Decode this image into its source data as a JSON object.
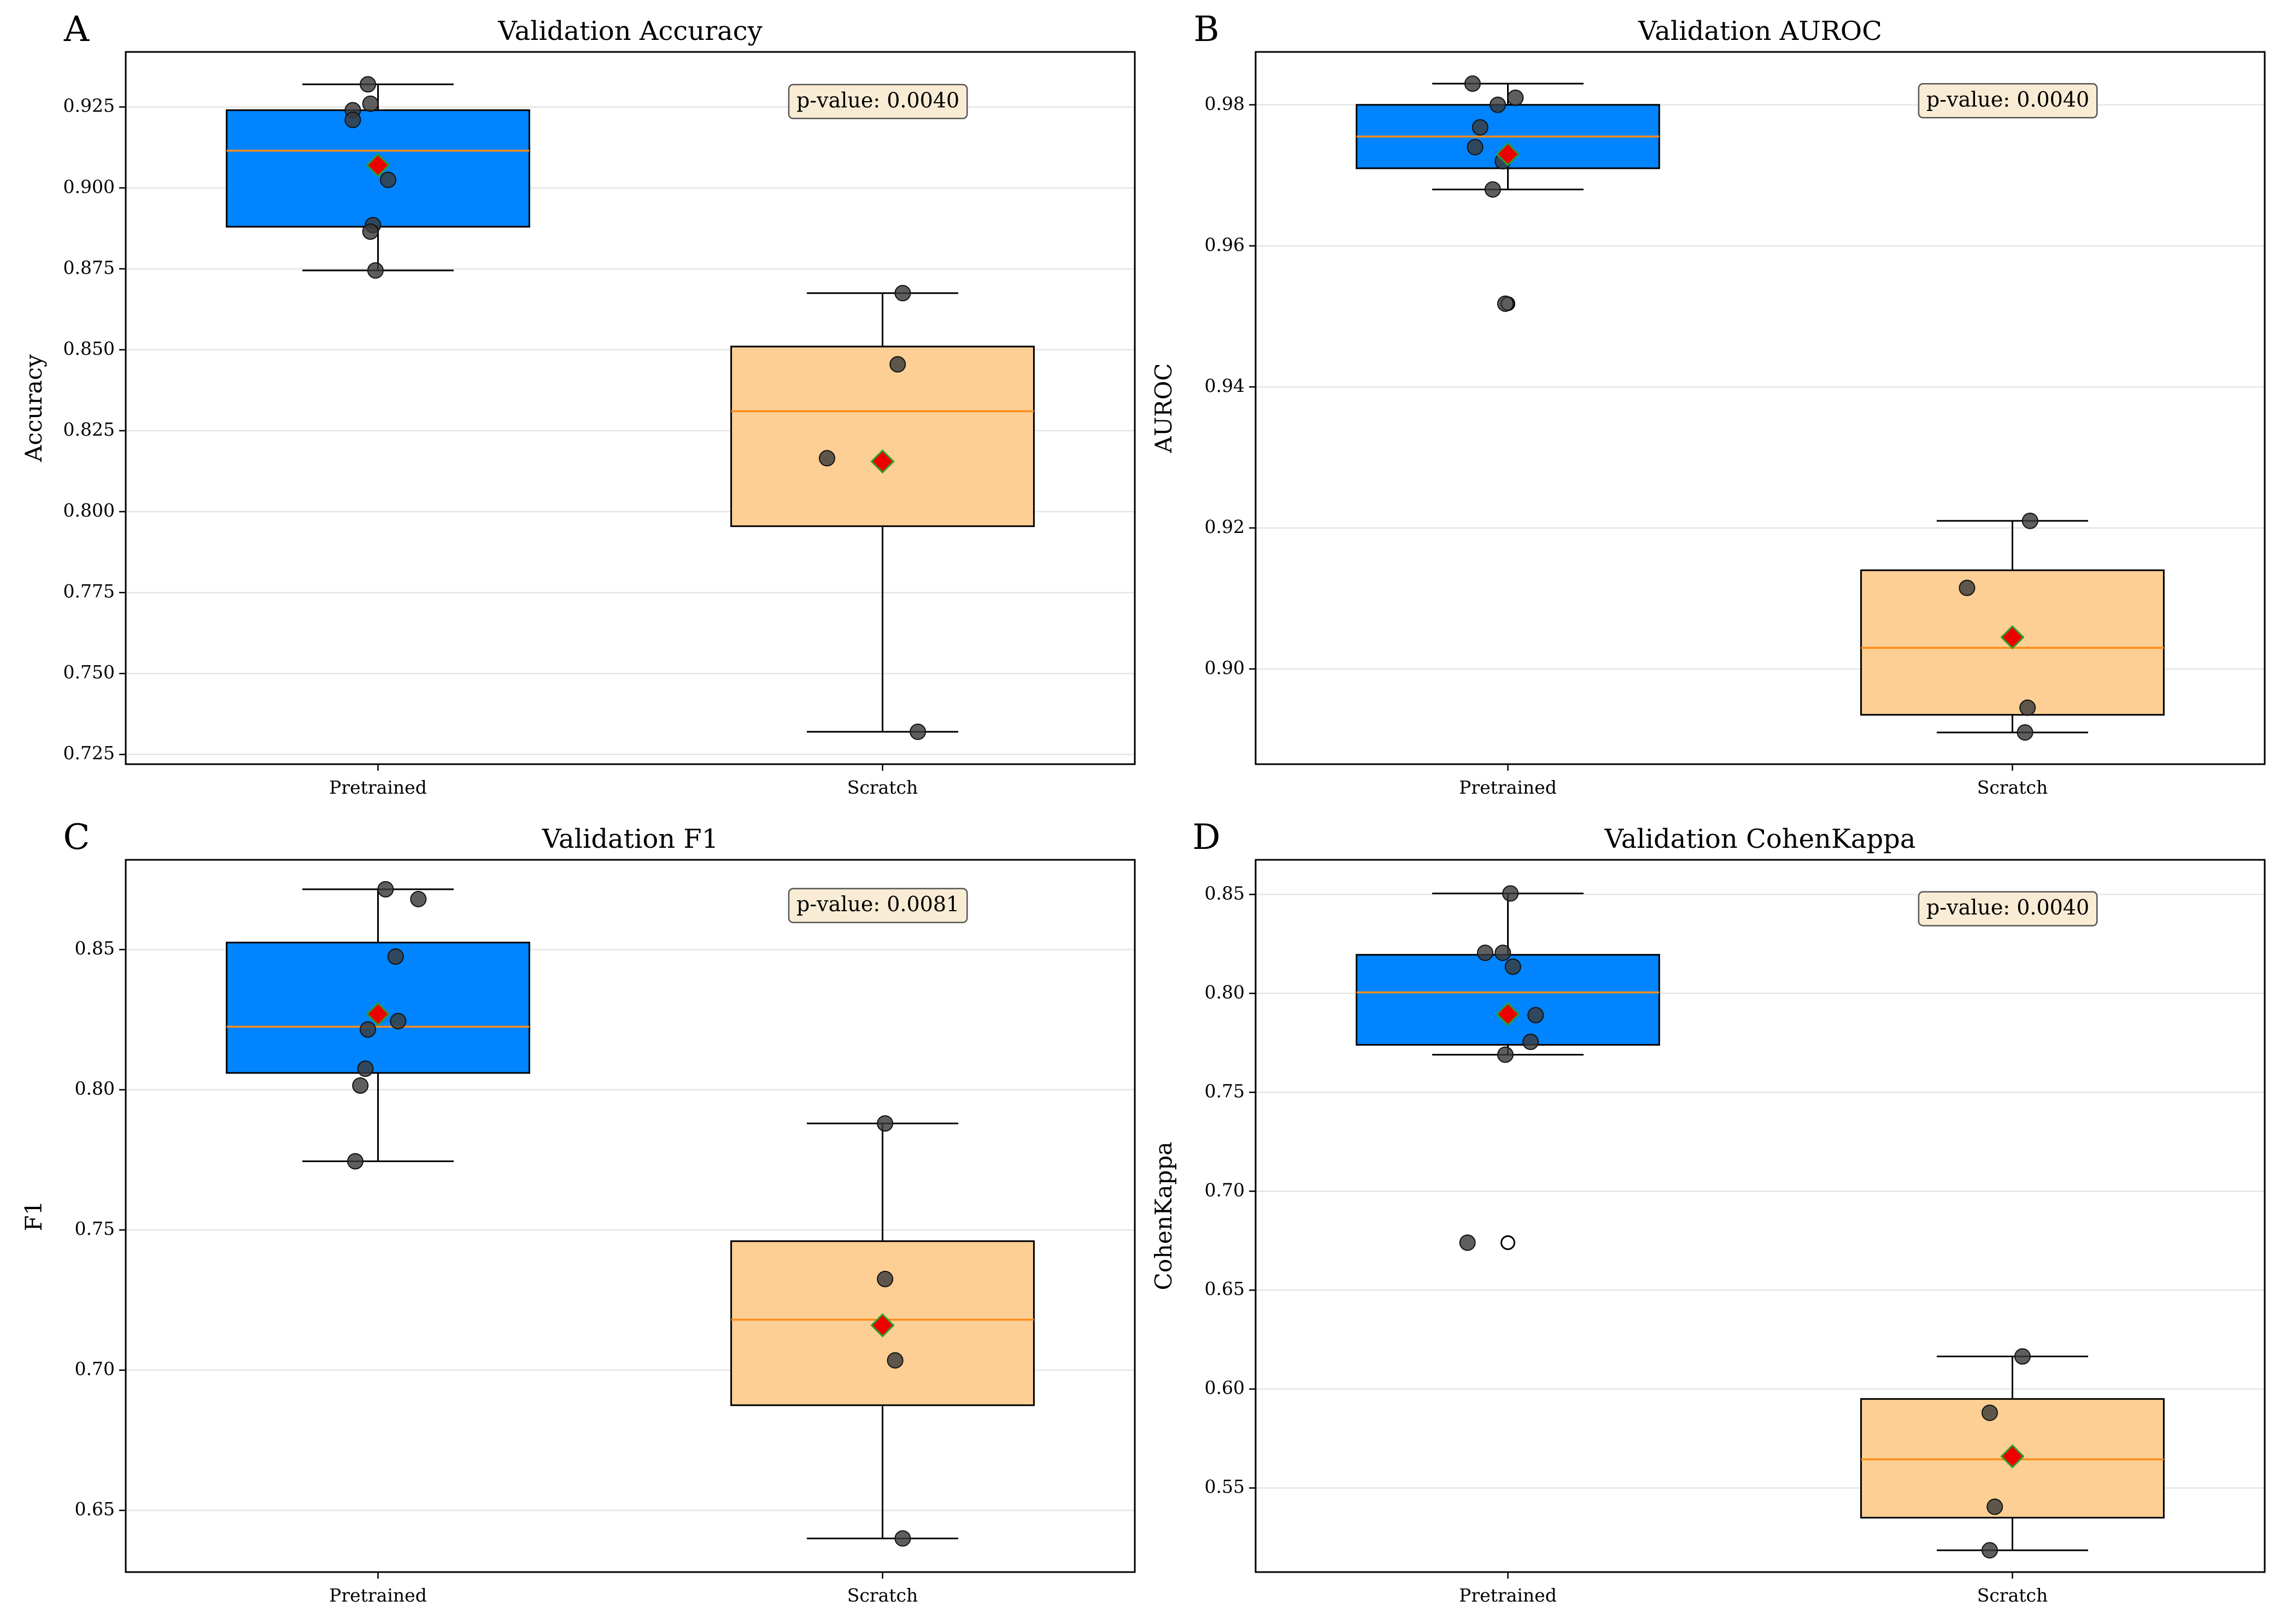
{
  "figure": {
    "colors": {
      "pretrained_box": "#0084ff",
      "scratch_box": "#fdcf94",
      "median": "#ff8c1a",
      "mean_fill": "#ee0000",
      "mean_edge": "#2ca02c",
      "point": "#3a3a3a",
      "grid": "#e5e5e5",
      "pvalue_bg": "#f8ecd4"
    }
  },
  "chart_data": [
    {
      "type": "box",
      "letter": "A",
      "title": "Validation Accuracy",
      "xlabel": "",
      "ylabel": "Accuracy",
      "categories": [
        "Pretrained",
        "Scratch"
      ],
      "ylim": [
        0.722,
        0.942
      ],
      "yticks": [
        0.725,
        0.75,
        0.775,
        0.8,
        0.825,
        0.85,
        0.875,
        0.9,
        0.925
      ],
      "ytick_labels": [
        "0.725",
        "0.750",
        "0.775",
        "0.800",
        "0.825",
        "0.850",
        "0.875",
        "0.900",
        "0.925"
      ],
      "grid": "y",
      "pvalue_label": "p-value: 0.0040",
      "pvalue_at": [
        0.825,
        0.9265
      ],
      "groups": [
        {
          "name": "Pretrained",
          "q1": 0.888,
          "median": 0.9115,
          "q3": 0.924,
          "whisker_low": 0.8745,
          "whisker_high": 0.932,
          "mean": 0.907,
          "points": [
            [
              -0.02,
              0.932
            ],
            [
              -0.05,
              0.924
            ],
            [
              -0.05,
              0.921
            ],
            [
              -0.015,
              0.926
            ],
            [
              0.02,
              0.9025
            ],
            [
              -0.01,
              0.8885
            ],
            [
              -0.015,
              0.8865
            ],
            [
              -0.005,
              0.8745
            ]
          ],
          "outliers": []
        },
        {
          "name": "Scratch",
          "q1": 0.7955,
          "median": 0.831,
          "q3": 0.851,
          "whisker_low": 0.732,
          "whisker_high": 0.8675,
          "mean": 0.8155,
          "points": [
            [
              0.04,
              0.8675
            ],
            [
              0.03,
              0.8455
            ],
            [
              -0.11,
              0.8165
            ],
            [
              0.07,
              0.732
            ]
          ],
          "outliers": []
        }
      ]
    },
    {
      "type": "box",
      "letter": "B",
      "title": "Validation AUROC",
      "xlabel": "",
      "ylabel": "AUROC",
      "categories": [
        "Pretrained",
        "Scratch"
      ],
      "ylim": [
        0.8865,
        0.9875
      ],
      "yticks": [
        0.9,
        0.92,
        0.94,
        0.96,
        0.98
      ],
      "ytick_labels": [
        "0.90",
        "0.92",
        "0.94",
        "0.96",
        "0.98"
      ],
      "grid": "y",
      "pvalue_label": "p-value: 0.0040",
      "pvalue_at": [
        0.825,
        0.9805
      ],
      "groups": [
        {
          "name": "Pretrained",
          "q1": 0.971,
          "median": 0.9755,
          "q3": 0.98,
          "whisker_low": 0.968,
          "whisker_high": 0.983,
          "mean": 0.973,
          "points": [
            [
              -0.07,
              0.983
            ],
            [
              0.015,
              0.981
            ],
            [
              -0.02,
              0.98
            ],
            [
              -0.055,
              0.9768
            ],
            [
              -0.065,
              0.974
            ],
            [
              -0.01,
              0.972
            ],
            [
              -0.03,
              0.968
            ],
            [
              -0.005,
              0.9518
            ]
          ],
          "outliers": [
            [
              0.0,
              0.9518
            ]
          ]
        },
        {
          "name": "Scratch",
          "q1": 0.8935,
          "median": 0.903,
          "q3": 0.914,
          "whisker_low": 0.891,
          "whisker_high": 0.921,
          "mean": 0.9045,
          "points": [
            [
              0.035,
              0.921
            ],
            [
              -0.09,
              0.9115
            ],
            [
              0.03,
              0.8945
            ],
            [
              0.025,
              0.891
            ]
          ],
          "outliers": []
        }
      ]
    },
    {
      "type": "box",
      "letter": "C",
      "title": "Validation F1",
      "xlabel": "",
      "ylabel": "F1",
      "categories": [
        "Pretrained",
        "Scratch"
      ],
      "ylim": [
        0.628,
        0.882
      ],
      "yticks": [
        0.65,
        0.7,
        0.75,
        0.8,
        0.85
      ],
      "ytick_labels": [
        "0.65",
        "0.70",
        "0.75",
        "0.80",
        "0.85"
      ],
      "grid": "y",
      "pvalue_label": "p-value: 0.0081",
      "pvalue_at": [
        0.825,
        0.8655
      ],
      "groups": [
        {
          "name": "Pretrained",
          "q1": 0.806,
          "median": 0.8225,
          "q3": 0.8525,
          "whisker_low": 0.7745,
          "whisker_high": 0.8715,
          "mean": 0.827,
          "points": [
            [
              0.015,
              0.8715
            ],
            [
              0.08,
              0.868
            ],
            [
              0.035,
              0.8475
            ],
            [
              0.04,
              0.8245
            ],
            [
              -0.02,
              0.8215
            ],
            [
              -0.025,
              0.8075
            ],
            [
              -0.035,
              0.8015
            ],
            [
              -0.045,
              0.7745
            ]
          ],
          "outliers": []
        },
        {
          "name": "Scratch",
          "q1": 0.6875,
          "median": 0.718,
          "q3": 0.746,
          "whisker_low": 0.64,
          "whisker_high": 0.788,
          "mean": 0.716,
          "points": [
            [
              0.005,
              0.788
            ],
            [
              0.005,
              0.7325
            ],
            [
              0.025,
              0.7035
            ],
            [
              0.04,
              0.64
            ]
          ],
          "outliers": []
        }
      ]
    },
    {
      "type": "box",
      "letter": "D",
      "title": "Validation CohenKappa",
      "xlabel": "",
      "ylabel": "CohenKappa",
      "categories": [
        "Pretrained",
        "Scratch"
      ],
      "ylim": [
        0.5075,
        0.8675
      ],
      "yticks": [
        0.55,
        0.6,
        0.65,
        0.7,
        0.75,
        0.8,
        0.85
      ],
      "ytick_labels": [
        "0.55",
        "0.60",
        "0.65",
        "0.70",
        "0.75",
        "0.80",
        "0.85"
      ],
      "grid": "y",
      "pvalue_label": "p-value: 0.0040",
      "pvalue_at": [
        0.825,
        0.8425
      ],
      "groups": [
        {
          "name": "Pretrained",
          "q1": 0.774,
          "median": 0.8005,
          "q3": 0.8195,
          "whisker_low": 0.769,
          "whisker_high": 0.8505,
          "mean": 0.7895,
          "points": [
            [
              0.005,
              0.8505
            ],
            [
              -0.045,
              0.8205
            ],
            [
              -0.01,
              0.8205
            ],
            [
              0.01,
              0.8135
            ],
            [
              0.055,
              0.789
            ],
            [
              0.045,
              0.7755
            ],
            [
              -0.005,
              0.769
            ],
            [
              -0.08,
              0.674
            ]
          ],
          "outliers": [
            [
              0.0,
              0.674
            ]
          ]
        },
        {
          "name": "Scratch",
          "q1": 0.535,
          "median": 0.5645,
          "q3": 0.595,
          "whisker_low": 0.5185,
          "whisker_high": 0.6165,
          "mean": 0.566,
          "points": [
            [
              0.02,
              0.6165
            ],
            [
              -0.045,
              0.588
            ],
            [
              -0.035,
              0.5405
            ],
            [
              -0.045,
              0.5185
            ]
          ],
          "outliers": []
        }
      ]
    }
  ]
}
